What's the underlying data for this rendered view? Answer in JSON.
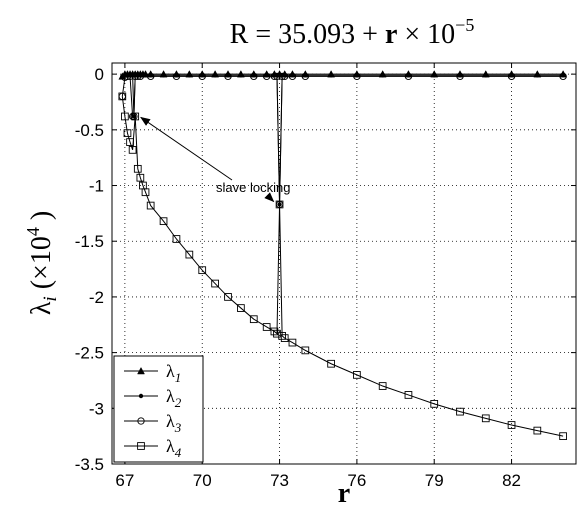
{
  "chart_data": {
    "type": "line",
    "title": {
      "prefix": "R = 35.093 + ",
      "bold": "r",
      "mid": " × 10",
      "sup": "−5"
    },
    "xlabel": "r",
    "ylabel": {
      "sym": "λ",
      "sub": "i",
      "rest": " (×10",
      "sup": "4",
      "close": " )"
    },
    "xlim": [
      66.5,
      84.5
    ],
    "ylim": [
      -3.5,
      0.1
    ],
    "xticks": [
      67,
      70,
      73,
      76,
      79,
      82
    ],
    "yticks": [
      0,
      -0.5,
      -1,
      -1.5,
      -2,
      -2.5,
      -3,
      -3.5
    ],
    "xtick_labels": [
      "67",
      "70",
      "73",
      "76",
      "79",
      "82"
    ],
    "ytick_labels": [
      "0",
      "-0.5",
      "-1",
      "-1.5",
      "-2",
      "-2.5",
      "-3",
      "-3.5"
    ],
    "grid": true,
    "legend_position": "bottom-left",
    "annotation": {
      "text": "slave locking",
      "targets": [
        [
          67.35,
          -0.38
        ],
        [
          73.0,
          -1.17
        ]
      ]
    },
    "series": [
      {
        "name": "λ1",
        "marker": "triangle",
        "x": [
          66.9,
          67.0,
          67.1,
          67.2,
          67.3,
          67.4,
          67.5,
          67.6,
          67.7,
          67.8,
          68.0,
          68.5,
          69.0,
          69.5,
          70.0,
          70.5,
          71.0,
          71.5,
          72.0,
          72.5,
          72.8,
          73.0,
          73.2,
          73.5,
          74.0,
          75.0,
          76.0,
          77.0,
          78.0,
          79.0,
          80.0,
          81.0,
          82.0,
          83.0,
          84.0
        ],
        "y": [
          -0.02,
          0,
          0,
          0,
          0,
          0,
          0,
          0,
          0,
          0,
          0,
          0,
          0,
          0,
          0,
          0,
          0,
          0,
          0,
          0,
          0,
          0,
          0,
          0,
          0,
          0,
          0,
          0,
          0,
          0,
          0,
          0,
          0,
          0,
          0
        ]
      },
      {
        "name": "λ2",
        "marker": "dot",
        "x": [
          66.9,
          67.0,
          67.1,
          67.2,
          67.3,
          67.35,
          67.4,
          67.5,
          67.6,
          67.7,
          67.8,
          68.0,
          68.5,
          69.0,
          69.5,
          70.0,
          70.5,
          71.0,
          71.5,
          72.0,
          72.5,
          72.8,
          72.9,
          73.0,
          73.1,
          73.2,
          73.5,
          74.0,
          75.0,
          76.0,
          77.0,
          78.0,
          79.0,
          80.0,
          81.0,
          82.0,
          83.0,
          84.0
        ],
        "y": [
          -0.02,
          -0.01,
          -0.01,
          -0.01,
          -0.01,
          -0.38,
          -0.01,
          -0.01,
          -0.01,
          -0.01,
          -0.01,
          -0.01,
          -0.01,
          -0.01,
          -0.01,
          -0.01,
          -0.01,
          -0.01,
          -0.01,
          -0.01,
          -0.01,
          -0.01,
          -0.01,
          -1.17,
          -0.01,
          -0.01,
          -0.01,
          -0.01,
          -0.01,
          -0.01,
          -0.01,
          -0.01,
          -0.01,
          -0.01,
          -0.01,
          -0.01,
          -0.01,
          -0.01
        ]
      },
      {
        "name": "λ3",
        "marker": "circle",
        "x": [
          66.9,
          67.0,
          67.1,
          67.2,
          67.3,
          67.35,
          67.4,
          67.5,
          67.6,
          68.0,
          69.0,
          70.0,
          71.0,
          72.0,
          72.5,
          72.8,
          72.9,
          73.0,
          73.1,
          73.2,
          73.5,
          74.0,
          76.0,
          78.0,
          80.0,
          82.0,
          84.0
        ],
        "y": [
          -0.2,
          -0.03,
          -0.02,
          -0.02,
          -0.38,
          -0.38,
          -0.02,
          -0.02,
          -0.02,
          -0.02,
          -0.02,
          -0.02,
          -0.02,
          -0.02,
          -0.02,
          -0.02,
          -0.02,
          -1.17,
          -0.02,
          -0.02,
          -0.02,
          -0.02,
          -0.02,
          -0.02,
          -0.02,
          -0.02,
          -0.02
        ]
      },
      {
        "name": "λ4",
        "marker": "square",
        "x": [
          66.9,
          67.0,
          67.1,
          67.2,
          67.3,
          67.4,
          67.5,
          67.6,
          67.7,
          67.8,
          68.0,
          68.5,
          69.0,
          69.5,
          70.0,
          70.5,
          71.0,
          71.5,
          72.0,
          72.5,
          72.8,
          72.9,
          73.0,
          73.1,
          73.2,
          73.5,
          74.0,
          75.0,
          76.0,
          77.0,
          78.0,
          79.0,
          80.0,
          81.0,
          82.0,
          83.0,
          84.0
        ],
        "y": [
          -0.2,
          -0.38,
          -0.53,
          -0.61,
          -0.68,
          -0.38,
          -0.85,
          -0.93,
          -1.0,
          -1.06,
          -1.18,
          -1.32,
          -1.48,
          -1.62,
          -1.76,
          -1.88,
          -2.0,
          -2.1,
          -2.2,
          -2.27,
          -2.31,
          -2.33,
          -1.17,
          -2.35,
          -2.37,
          -2.41,
          -2.48,
          -2.6,
          -2.7,
          -2.8,
          -2.88,
          -2.96,
          -3.03,
          -3.09,
          -3.15,
          -3.2,
          -3.25
        ]
      }
    ]
  }
}
